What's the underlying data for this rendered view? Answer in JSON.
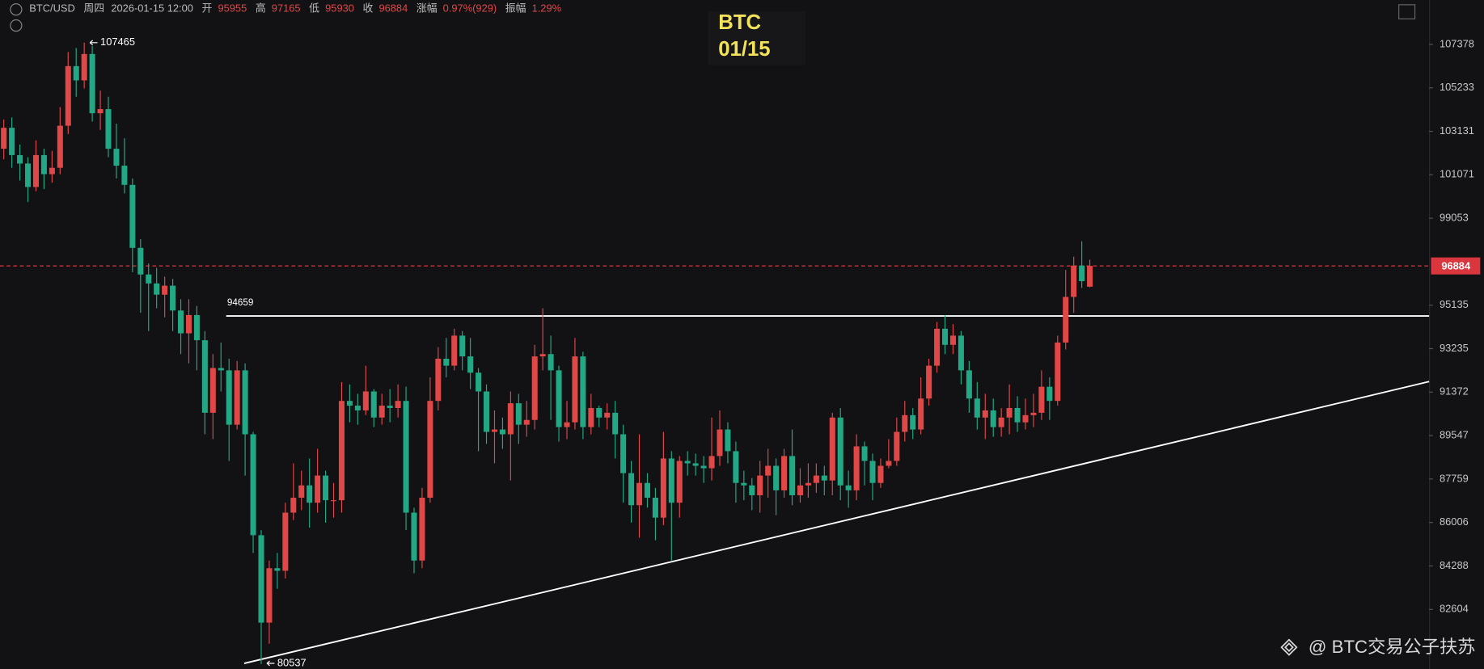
{
  "header": {
    "symbol": "BTC/USD",
    "weekday": "周四",
    "datetime": "2026-01-15 12:00",
    "open_label": "开",
    "high_label": "高",
    "low_label": "低",
    "close_label": "收",
    "change_label": "涨幅",
    "change": "0.97%(929)",
    "amplitude_label": "振幅",
    "amplitude": "1.29%"
  },
  "watermark": "@ BTC交易公子扶苏",
  "chart_data": {
    "type": "candlestick",
    "title": "BTC",
    "subtitle": "01/15",
    "up_color": "#e04747",
    "down_color": "#22a884",
    "log_scale": true,
    "ylim": [
      80351,
      109614
    ],
    "yticks": [
      82604,
      84288,
      86006,
      87759,
      89547,
      91372,
      93235,
      95135,
      99053,
      101071,
      103131,
      105233,
      107378
    ],
    "last_price": 96884,
    "resistance": 94659,
    "trendline": [
      80560,
      91820
    ],
    "candles": [
      [
        102300,
        103700,
        101800,
        103300
      ],
      [
        103300,
        103800,
        101400,
        102000
      ],
      [
        102000,
        102500,
        100800,
        101600
      ],
      [
        101600,
        101900,
        99800,
        100500
      ],
      [
        100500,
        102700,
        100300,
        102000
      ],
      [
        102000,
        102300,
        100400,
        101100
      ],
      [
        101100,
        102200,
        100700,
        101400
      ],
      [
        101400,
        104300,
        101100,
        103400
      ],
      [
        103400,
        107000,
        103000,
        106300
      ],
      [
        106300,
        107200,
        104800,
        105600
      ],
      [
        105600,
        107465,
        105200,
        106900
      ],
      [
        106900,
        107300,
        103600,
        104000
      ],
      [
        104000,
        105100,
        103200,
        104200
      ],
      [
        104200,
        104800,
        101900,
        102300
      ],
      [
        102300,
        103500,
        100900,
        101500
      ],
      [
        101500,
        102800,
        100200,
        100600
      ],
      [
        100600,
        100900,
        96600,
        97700
      ],
      [
        97700,
        98100,
        94800,
        96500
      ],
      [
        96500,
        97000,
        94000,
        96100
      ],
      [
        96100,
        96800,
        95000,
        95600
      ],
      [
        95600,
        96400,
        94600,
        96000
      ],
      [
        96000,
        96300,
        94000,
        94900
      ],
      [
        94900,
        95400,
        93000,
        93900
      ],
      [
        93900,
        95400,
        92600,
        94700
      ],
      [
        94700,
        95100,
        92300,
        93600
      ],
      [
        93600,
        94000,
        89600,
        90500
      ],
      [
        90500,
        93000,
        89400,
        92400
      ],
      [
        92400,
        93500,
        91400,
        92300
      ],
      [
        92300,
        92800,
        88500,
        90000
      ],
      [
        90000,
        92700,
        89800,
        92300
      ],
      [
        92300,
        92600,
        87900,
        89600
      ],
      [
        89600,
        89700,
        84800,
        85500
      ],
      [
        85500,
        85700,
        80537,
        82100
      ],
      [
        82100,
        84500,
        81300,
        84200
      ],
      [
        84200,
        84800,
        83400,
        84100
      ],
      [
        84100,
        86800,
        83800,
        86400
      ],
      [
        86400,
        88400,
        86100,
        87000
      ],
      [
        87000,
        88100,
        86500,
        87500
      ],
      [
        87500,
        88600,
        85800,
        86800
      ],
      [
        86800,
        89000,
        86400,
        87900
      ],
      [
        87900,
        88100,
        86000,
        86900
      ],
      [
        86900,
        87600,
        86200,
        86900
      ],
      [
        86900,
        91800,
        86400,
        91000
      ],
      [
        91000,
        91700,
        90100,
        90800
      ],
      [
        90800,
        91300,
        90000,
        90600
      ],
      [
        90600,
        92500,
        90400,
        91400
      ],
      [
        91400,
        91500,
        89900,
        90300
      ],
      [
        90300,
        91300,
        90000,
        90800
      ],
      [
        90800,
        91500,
        90100,
        90700
      ],
      [
        90700,
        91700,
        90300,
        91000
      ],
      [
        91000,
        91600,
        85700,
        86400
      ],
      [
        86400,
        86600,
        84000,
        84500
      ],
      [
        84500,
        87400,
        84200,
        87000
      ],
      [
        87000,
        92000,
        86800,
        91000
      ],
      [
        91000,
        93300,
        90600,
        92800
      ],
      [
        92800,
        93700,
        92000,
        92500
      ],
      [
        92500,
        94100,
        92300,
        93800
      ],
      [
        93800,
        94000,
        92300,
        92900
      ],
      [
        92900,
        93700,
        91500,
        92200
      ],
      [
        92200,
        92400,
        88900,
        91400
      ],
      [
        91400,
        91700,
        89200,
        89700
      ],
      [
        89700,
        90600,
        88400,
        89800
      ],
      [
        89800,
        90300,
        89000,
        89600
      ],
      [
        89600,
        91400,
        87700,
        90900
      ],
      [
        90900,
        91300,
        89200,
        90000
      ],
      [
        90000,
        91000,
        89500,
        90200
      ],
      [
        90200,
        93400,
        89800,
        92900
      ],
      [
        92900,
        95000,
        92300,
        93000
      ],
      [
        93000,
        93800,
        90200,
        92300
      ],
      [
        92300,
        92500,
        89300,
        89900
      ],
      [
        89900,
        91000,
        89400,
        90100
      ],
      [
        90100,
        93700,
        89800,
        92900
      ],
      [
        92900,
        93100,
        89400,
        89900
      ],
      [
        89900,
        91300,
        89600,
        90700
      ],
      [
        90700,
        90800,
        89900,
        90300
      ],
      [
        90300,
        90900,
        89800,
        90500
      ],
      [
        90500,
        91000,
        88600,
        89600
      ],
      [
        89600,
        90000,
        86800,
        88000
      ],
      [
        88000,
        88500,
        86000,
        86700
      ],
      [
        86700,
        89600,
        85400,
        87600
      ],
      [
        87600,
        88000,
        86600,
        87000
      ],
      [
        87000,
        87400,
        85300,
        86200
      ],
      [
        86200,
        89700,
        85900,
        88600
      ],
      [
        88600,
        88900,
        84500,
        86800
      ],
      [
        86800,
        88700,
        86200,
        88500
      ],
      [
        88500,
        88900,
        87900,
        88400
      ],
      [
        88400,
        88800,
        87900,
        88300
      ],
      [
        88300,
        88700,
        87600,
        88200
      ],
      [
        88200,
        90300,
        87700,
        88700
      ],
      [
        88700,
        90600,
        88300,
        89800
      ],
      [
        89800,
        90100,
        88400,
        88900
      ],
      [
        88900,
        89300,
        86800,
        87600
      ],
      [
        87600,
        88100,
        86900,
        87500
      ],
      [
        87500,
        87800,
        86500,
        87100
      ],
      [
        87100,
        88500,
        86400,
        87900
      ],
      [
        87900,
        89000,
        87000,
        88300
      ],
      [
        88300,
        88600,
        86300,
        87300
      ],
      [
        87300,
        89000,
        87000,
        88700
      ],
      [
        88700,
        89800,
        86700,
        87100
      ],
      [
        87100,
        88200,
        86800,
        87500
      ],
      [
        87500,
        88400,
        87000,
        87600
      ],
      [
        87600,
        88400,
        87200,
        87900
      ],
      [
        87900,
        88300,
        87100,
        87700
      ],
      [
        87700,
        90500,
        87100,
        90300
      ],
      [
        90300,
        90700,
        86900,
        87500
      ],
      [
        87500,
        88100,
        86600,
        87300
      ],
      [
        87300,
        89600,
        86900,
        89100
      ],
      [
        89100,
        89300,
        87500,
        88500
      ],
      [
        88500,
        88800,
        86900,
        87600
      ],
      [
        87600,
        88600,
        87400,
        88300
      ],
      [
        88300,
        89400,
        88200,
        88500
      ],
      [
        88500,
        90300,
        88300,
        89700
      ],
      [
        89700,
        91000,
        89300,
        90400
      ],
      [
        90400,
        90700,
        89400,
        89800
      ],
      [
        89800,
        92000,
        89600,
        91100
      ],
      [
        91100,
        92800,
        90800,
        92500
      ],
      [
        92500,
        94400,
        92200,
        94100
      ],
      [
        94100,
        94700,
        93000,
        93400
      ],
      [
        93400,
        94300,
        93000,
        93800
      ],
      [
        93800,
        94000,
        91700,
        92300
      ],
      [
        92300,
        92700,
        90500,
        91100
      ],
      [
        91100,
        91800,
        89800,
        90300
      ],
      [
        90300,
        91300,
        89400,
        90600
      ],
      [
        90600,
        91100,
        89500,
        89900
      ],
      [
        89900,
        90700,
        89500,
        90300
      ],
      [
        90300,
        91700,
        89600,
        90700
      ],
      [
        90700,
        91200,
        89700,
        90100
      ],
      [
        90100,
        91100,
        89800,
        90400
      ],
      [
        90400,
        91300,
        89900,
        90500
      ],
      [
        90500,
        92300,
        90200,
        91600
      ],
      [
        91600,
        92000,
        90200,
        91000
      ],
      [
        91000,
        93800,
        90800,
        93500
      ],
      [
        93500,
        96700,
        93200,
        95500
      ],
      [
        95500,
        97300,
        94800,
        96900
      ],
      [
        96900,
        98000,
        95900,
        96200
      ],
      [
        95955,
        97165,
        95930,
        96884
      ]
    ]
  }
}
